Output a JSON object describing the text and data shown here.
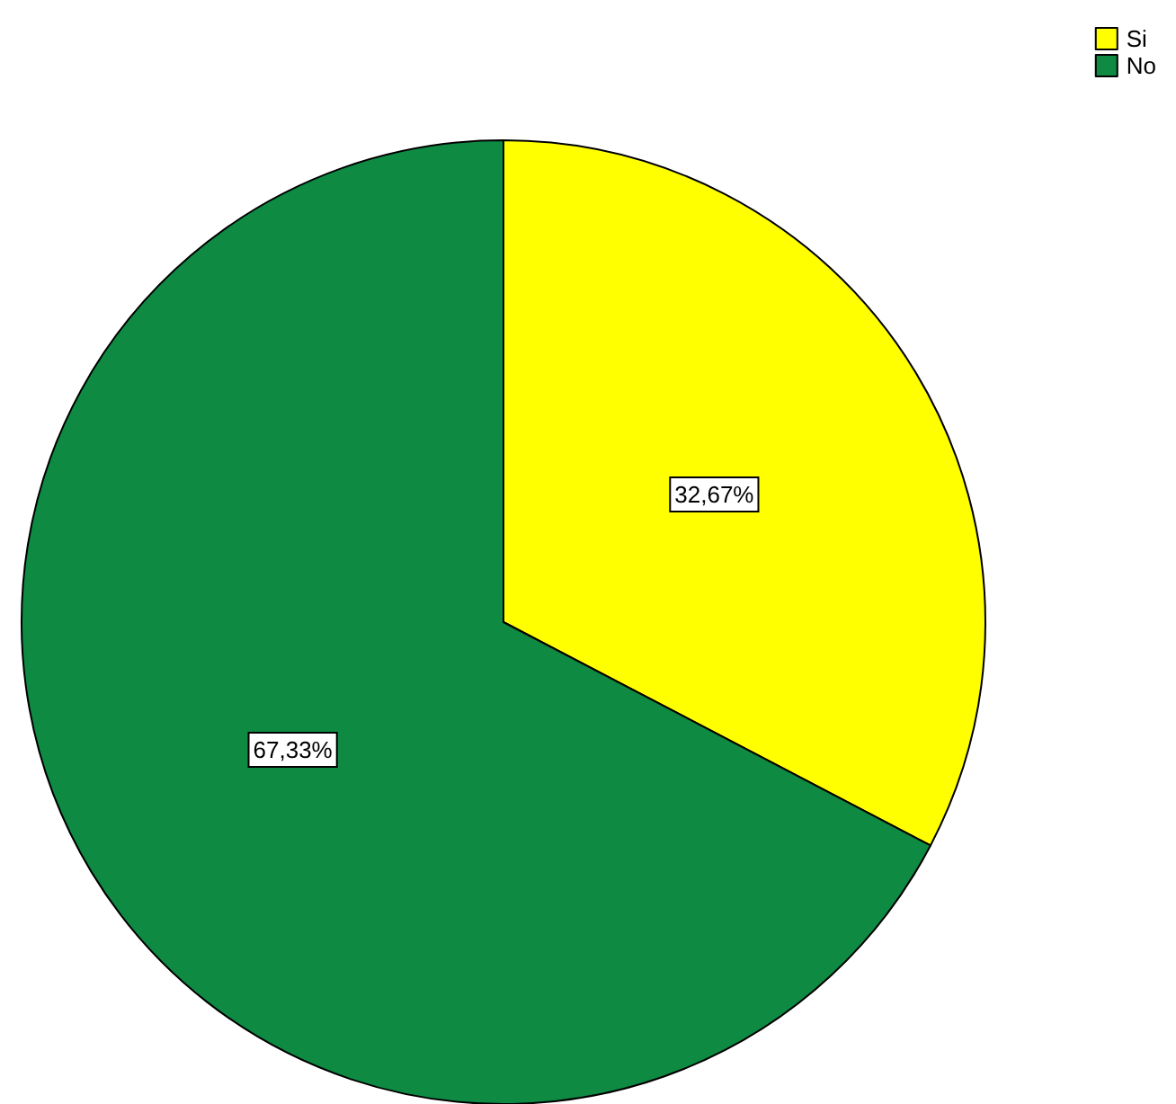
{
  "chart_data": {
    "type": "pie",
    "categories": [
      "Si",
      "No"
    ],
    "values": [
      32.67,
      67.33
    ],
    "colors": [
      "#ffff00",
      "#0e8a43"
    ],
    "value_labels": [
      "32,67%",
      "67,33%"
    ],
    "legend": "top right"
  }
}
